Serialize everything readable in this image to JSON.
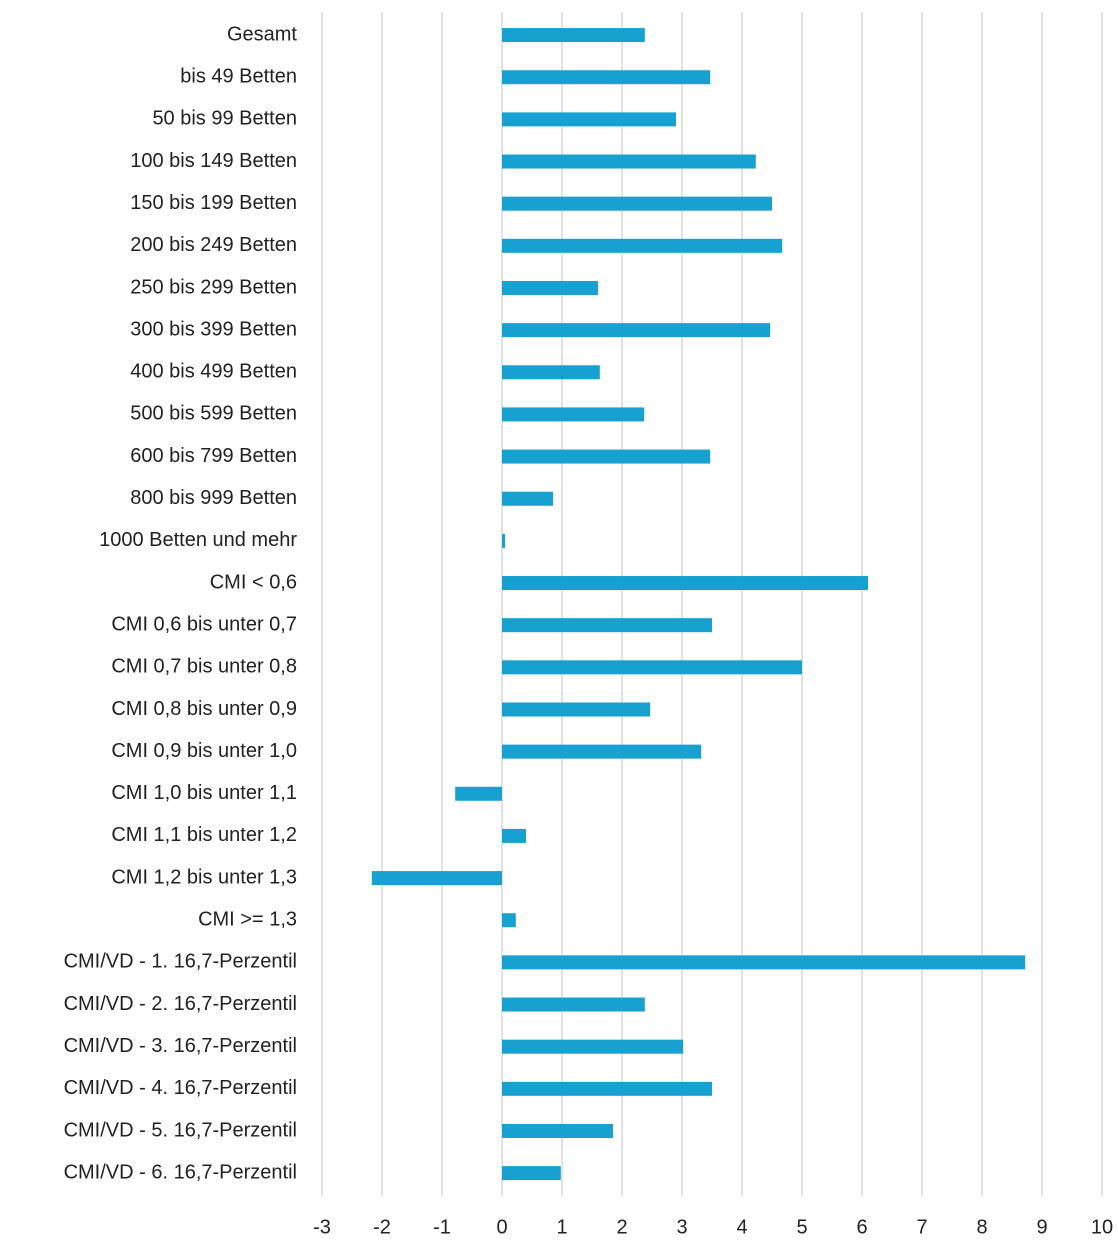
{
  "chart_data": {
    "type": "bar",
    "orientation": "horizontal",
    "categories": [
      "Gesamt",
      "bis 49 Betten",
      "50 bis 99 Betten",
      "100 bis 149 Betten",
      "150 bis 199 Betten",
      "200 bis 249 Betten",
      "250 bis 299 Betten",
      "300 bis 399 Betten",
      "400 bis 499 Betten",
      "500 bis 599 Betten",
      "600 bis 799 Betten",
      "800 bis 999 Betten",
      "1000 Betten und mehr",
      "CMI < 0,6",
      "CMI 0,6 bis unter 0,7",
      "CMI 0,7 bis unter 0,8",
      "CMI 0,8 bis unter 0,9",
      "CMI 0,9 bis unter 1,0",
      "CMI 1,0 bis unter 1,1",
      "CMI 1,1 bis unter 1,2",
      "CMI 1,2 bis unter 1,3",
      "CMI >= 1,3",
      "CMI/VD - 1. 16,7-Perzentil",
      "CMI/VD - 2. 16,7-Perzentil",
      "CMI/VD - 3. 16,7-Perzentil",
      "CMI/VD - 4. 16,7-Perzentil",
      "CMI/VD - 5. 16,7-Perzentil",
      "CMI/VD - 6. 16,7-Perzentil"
    ],
    "values": [
      2.38,
      3.47,
      2.9,
      4.23,
      4.5,
      4.67,
      1.6,
      4.47,
      1.63,
      2.37,
      3.47,
      0.85,
      0.05,
      6.1,
      3.5,
      5.0,
      2.47,
      3.32,
      -0.78,
      0.4,
      -2.17,
      0.23,
      8.72,
      2.38,
      3.02,
      3.5,
      1.85,
      0.98
    ],
    "color": "#16a1d1",
    "xlim": [
      -3,
      10
    ],
    "xticks": [
      -3,
      -2,
      -1,
      0,
      1,
      2,
      3,
      4,
      5,
      6,
      7,
      8,
      9,
      10
    ],
    "grid": true
  }
}
